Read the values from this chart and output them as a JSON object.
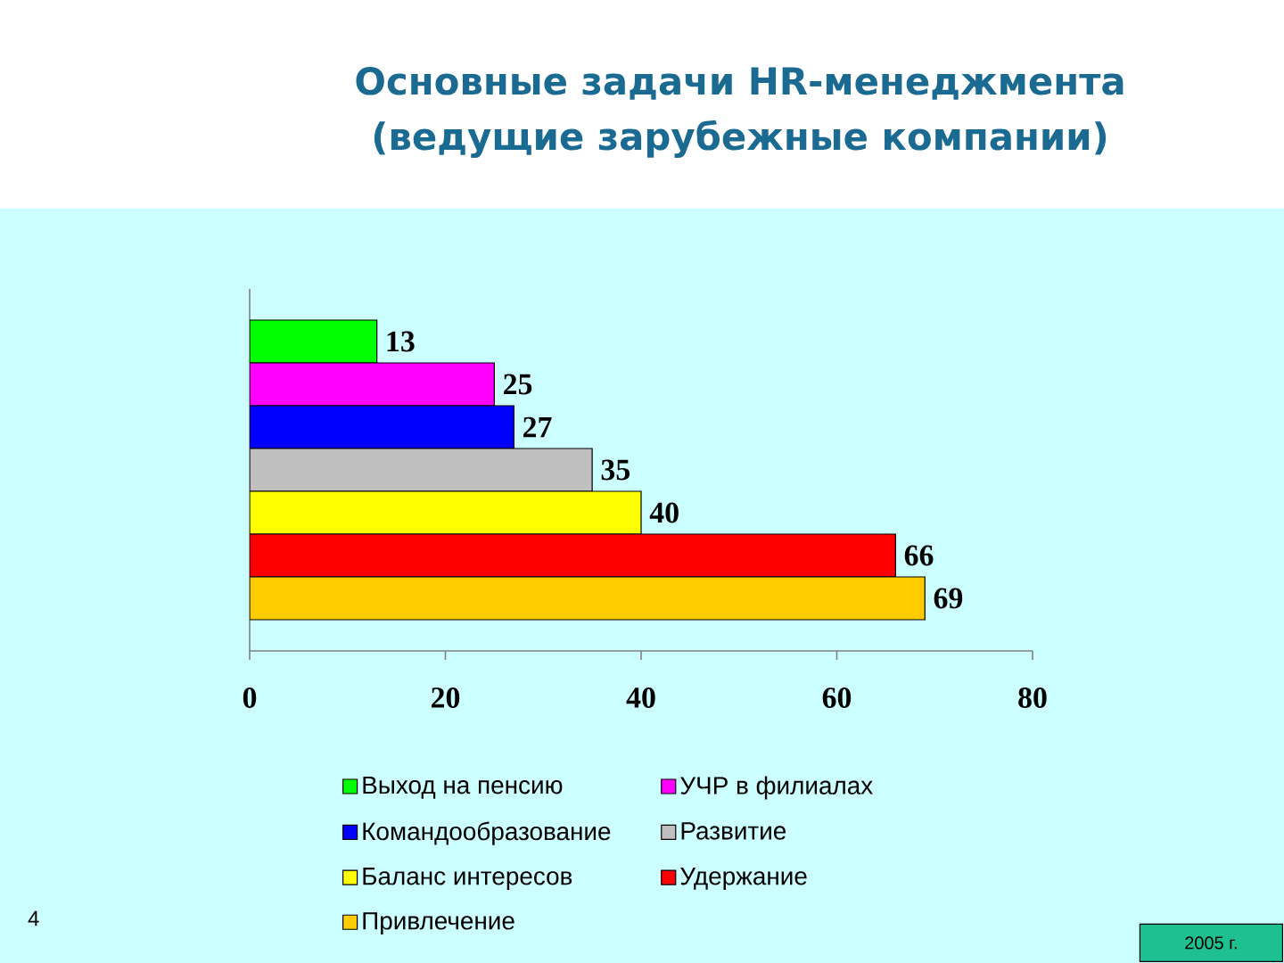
{
  "chart_data": {
    "type": "bar",
    "orientation": "horizontal",
    "title": "Основные задачи HR-менеджмента",
    "subtitle": "(ведущие зарубежные компании)",
    "categories": [
      null
    ],
    "series": [
      {
        "name": "Выход на пенсию",
        "color": "#00ff00",
        "values": [
          13
        ]
      },
      {
        "name": "УЧР в филиалах",
        "color": "#ff00ff",
        "values": [
          25
        ]
      },
      {
        "name": "Командообразование",
        "color": "#0000ff",
        "values": [
          27
        ]
      },
      {
        "name": "Развитие",
        "color": "#c0c0c0",
        "values": [
          35
        ]
      },
      {
        "name": "Баланс интересов",
        "color": "#ffff00",
        "values": [
          40
        ]
      },
      {
        "name": "Удержание",
        "color": "#ff0000",
        "values": [
          66
        ]
      },
      {
        "name": "Привлечение",
        "color": "#ffcc00",
        "values": [
          69
        ]
      }
    ],
    "xlim": [
      0,
      80
    ],
    "xticks": [
      0,
      20,
      40,
      60,
      80
    ],
    "data_labels": true,
    "legend": "bottom",
    "annotations": [
      "4",
      "2005 г."
    ]
  }
}
